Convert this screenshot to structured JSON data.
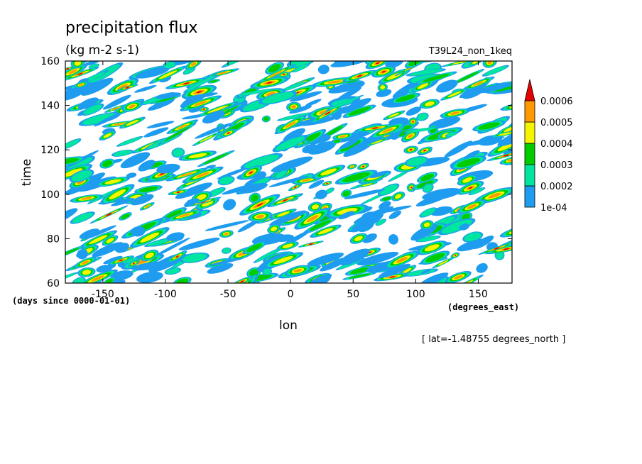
{
  "chart_data": {
    "type": "heatmap",
    "title": "precipitation flux",
    "units": "(kg m-2 s-1)",
    "run_label": "T39L24_non_1keq",
    "xlabel": "lon",
    "x_units": "(degrees_east)",
    "ylabel": "time",
    "y_units": "(days since 0000-01-01)",
    "slice_label": "[ lat=-1.48755 degrees_north ]",
    "xlim": [
      -180,
      177
    ],
    "ylim": [
      60,
      160
    ],
    "x_ticks": [
      -150,
      -100,
      -50,
      0,
      50,
      100,
      150
    ],
    "x_tick_labels": [
      "-150",
      "-100",
      "-50",
      "0",
      "50",
      "100",
      "150"
    ],
    "y_ticks": [
      60,
      80,
      100,
      120,
      140,
      160
    ],
    "y_tick_labels": [
      "60",
      "80",
      "100",
      "120",
      "140",
      "160"
    ],
    "grid": false,
    "legend_placement": "right",
    "colorbar": {
      "levels": [
        0.0001,
        0.0002,
        0.0003,
        0.0004,
        0.0005,
        0.0006
      ],
      "labels": [
        "1e-04",
        "0.0002",
        "0.0003",
        "0.0004",
        "0.0005",
        "0.0006"
      ],
      "colors": [
        "#1e9cf0",
        "#00e5a0",
        "#00cc00",
        "#f5f500",
        "#ff9900",
        "#e60000"
      ],
      "extend": "max"
    }
  }
}
